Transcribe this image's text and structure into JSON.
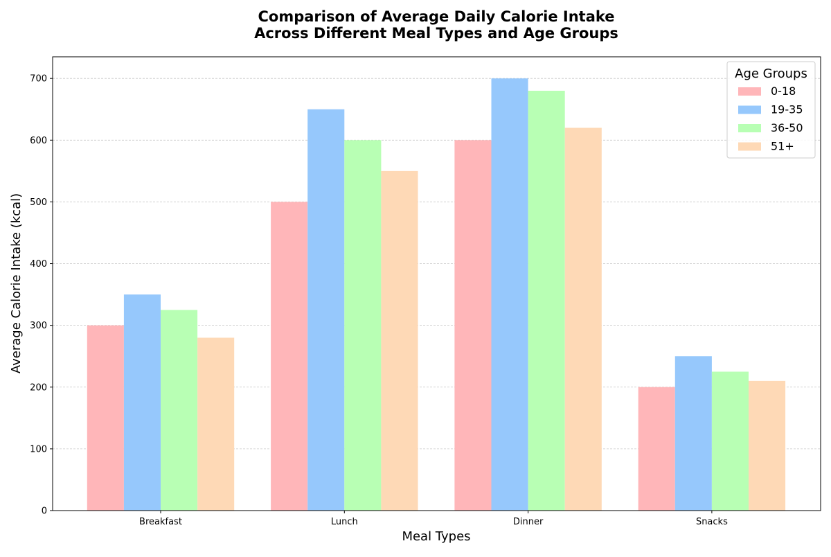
{
  "chart_data": {
    "type": "bar",
    "title": "Comparison of Average Daily Calorie Intake\nAcross Different Meal Types and Age Groups",
    "xlabel": "Meal Types",
    "ylabel": "Average Calorie Intake (kcal)",
    "categories": [
      "Breakfast",
      "Lunch",
      "Dinner",
      "Snacks"
    ],
    "ylim": [
      0,
      735
    ],
    "yticks": [
      0,
      100,
      200,
      300,
      400,
      500,
      600,
      700
    ],
    "grid": "y",
    "legend": {
      "title": "Age Groups",
      "placement": "top-right"
    },
    "series": [
      {
        "name": "0-18",
        "color": "#ffb6b9",
        "values": [
          300,
          500,
          600,
          200
        ]
      },
      {
        "name": "19-35",
        "color": "#96c8fc",
        "values": [
          350,
          650,
          700,
          250
        ]
      },
      {
        "name": "36-50",
        "color": "#b8ffb4",
        "values": [
          325,
          600,
          680,
          225
        ]
      },
      {
        "name": "51+",
        "color": "#fed9b6",
        "values": [
          280,
          550,
          620,
          210
        ]
      }
    ]
  }
}
